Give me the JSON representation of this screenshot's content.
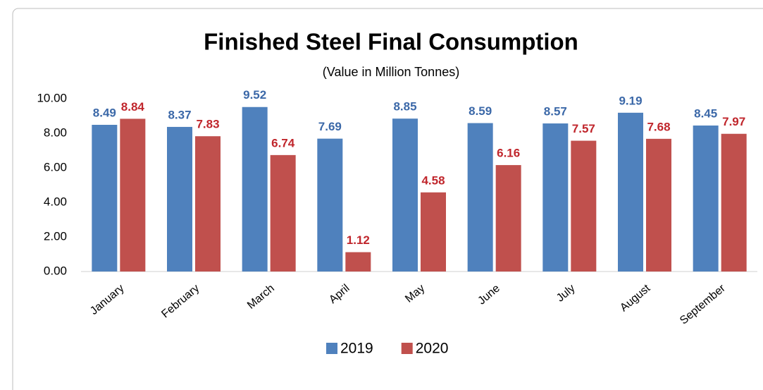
{
  "chart_data": {
    "type": "bar",
    "title": "Finished Steel Final Consumption",
    "subtitle": "(Value in Million Tonnes)",
    "categories": [
      "January",
      "February",
      "March",
      "April",
      "May",
      "June",
      "July",
      "August",
      "September"
    ],
    "series": [
      {
        "name": "2019",
        "color": "#4f81bd",
        "label_color": "#3b68a8",
        "values": [
          8.49,
          8.37,
          9.52,
          7.69,
          8.85,
          8.59,
          8.57,
          9.19,
          8.45
        ]
      },
      {
        "name": "2020",
        "color": "#c0504d",
        "label_color": "#c0262c",
        "values": [
          8.84,
          7.83,
          6.74,
          1.12,
          4.58,
          6.16,
          7.57,
          7.68,
          7.97
        ]
      }
    ],
    "ylim": [
      0,
      10
    ],
    "yticks": [
      {
        "value": 0,
        "label": "0.00"
      },
      {
        "value": 2,
        "label": "2.00"
      },
      {
        "value": 4,
        "label": "4.00"
      },
      {
        "value": 6,
        "label": "6.00"
      },
      {
        "value": 8,
        "label": "8.00"
      },
      {
        "value": 10,
        "label": "10.00"
      }
    ],
    "grid": false,
    "legend": "bottom"
  }
}
